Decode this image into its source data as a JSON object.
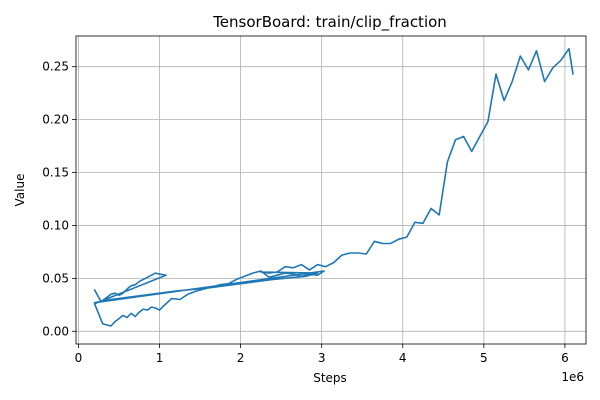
{
  "chart_data": {
    "type": "line",
    "title": "TensorBoard: train/clip_fraction",
    "xlabel": "Steps",
    "ylabel": "Value",
    "x_offset_label": "1e6",
    "xlim": [
      -30000,
      6260000
    ],
    "ylim": [
      -0.012,
      0.279
    ],
    "x_ticks": [
      0,
      1000000,
      2000000,
      3000000,
      4000000,
      5000000,
      6000000
    ],
    "x_tick_labels": [
      "0",
      "1",
      "2",
      "3",
      "4",
      "5",
      "6"
    ],
    "y_ticks": [
      0.0,
      0.05,
      0.1,
      0.15,
      0.2,
      0.25
    ],
    "y_tick_labels": [
      "0.00",
      "0.05",
      "0.10",
      "0.15",
      "0.20",
      "0.25"
    ],
    "grid": true,
    "colors": {
      "line": "#1f77b4",
      "grid": "#b0b0b0",
      "axes": "#000000"
    },
    "series": [
      {
        "x": [
          200000,
          280000,
          350000,
          400000,
          450000,
          500000,
          550000,
          600000,
          650000,
          700000,
          750000,
          800000,
          850000,
          900000,
          950000,
          1000000,
          1080000,
          200000,
          300000,
          400000,
          450000,
          500000,
          550000,
          600000,
          650000,
          700000,
          750000,
          800000,
          850000,
          900000,
          950000,
          1000000,
          1050000,
          1150000,
          1250000,
          1350000,
          1450000,
          1550000,
          1650000,
          1750000,
          1850000,
          1950000,
          2050000,
          2150000,
          2250000,
          2350000,
          2450000,
          2550000,
          2650000,
          2750000,
          2850000,
          2950000,
          3030000,
          200000,
          400000,
          800000,
          1200000,
          1600000,
          2000000,
          2400000,
          2800000,
          2950000,
          2250000,
          2350000,
          2450000,
          2550000,
          2650000,
          2750000,
          2850000,
          2950000,
          3050000,
          3150000,
          3250000,
          3350000,
          3450000,
          3550000,
          3650000,
          3750000,
          3850000,
          3950000,
          4050000,
          4150000,
          4250000,
          4350000,
          4450000,
          4550000,
          4650000,
          4750000,
          4850000,
          4950000,
          5050000,
          5150000,
          5250000,
          5350000,
          5450000,
          5550000,
          5650000,
          5750000,
          5850000,
          5950000,
          6050000,
          6100000
        ],
        "values": [
          0.039,
          0.028,
          0.032,
          0.035,
          0.036,
          0.034,
          0.036,
          0.04,
          0.043,
          0.044,
          0.047,
          0.049,
          0.051,
          0.053,
          0.055,
          0.054,
          0.053,
          0.026,
          0.007,
          0.005,
          0.009,
          0.012,
          0.015,
          0.013,
          0.017,
          0.014,
          0.018,
          0.021,
          0.02,
          0.023,
          0.022,
          0.02,
          0.024,
          0.031,
          0.03,
          0.035,
          0.038,
          0.04,
          0.042,
          0.044,
          0.045,
          0.049,
          0.052,
          0.055,
          0.057,
          0.051,
          0.053,
          0.055,
          0.054,
          0.052,
          0.054,
          0.053,
          0.057,
          0.027,
          0.03,
          0.034,
          0.038,
          0.041,
          0.045,
          0.049,
          0.052,
          0.055,
          0.056,
          0.055,
          0.056,
          0.061,
          0.06,
          0.063,
          0.058,
          0.063,
          0.061,
          0.065,
          0.072,
          0.074,
          0.074,
          0.073,
          0.085,
          0.083,
          0.083,
          0.087,
          0.089,
          0.103,
          0.102,
          0.116,
          0.11,
          0.16,
          0.181,
          0.184,
          0.17,
          0.184,
          0.198,
          0.243,
          0.218,
          0.236,
          0.26,
          0.247,
          0.265,
          0.236,
          0.249,
          0.256,
          0.267,
          0.243
        ]
      }
    ]
  }
}
